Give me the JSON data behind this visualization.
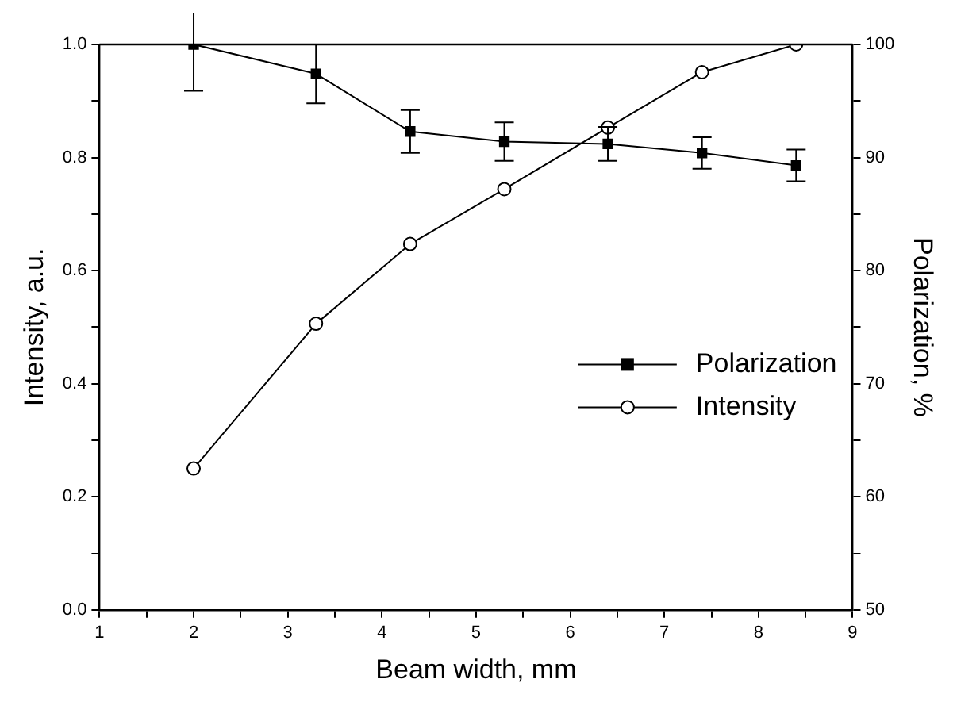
{
  "chart_data": {
    "type": "line",
    "xlabel": "Beam width, mm",
    "ylabel": "Intensity, a.u.",
    "y2label": "Polarization, %",
    "x": [
      2,
      3.3,
      4.3,
      5.3,
      6.4,
      7.4,
      8.4
    ],
    "series": [
      {
        "name": "Polarization",
        "color": "#000000",
        "axis": "y2",
        "marker": "square",
        "values": [
          100,
          97.4,
          92.3,
          91.4,
          91.2,
          90.4,
          89.3
        ],
        "errors": [
          4.1,
          2.6,
          1.9,
          1.7,
          1.5,
          1.4,
          1.4
        ]
      },
      {
        "name": "Intensity",
        "color": "#000000",
        "axis": "y",
        "marker": "circle",
        "values": [
          0.25,
          0.506,
          0.647,
          0.744,
          0.853,
          0.951,
          1.0
        ]
      }
    ],
    "xlim": [
      1,
      9
    ],
    "xticks": [
      1,
      {
        "value": 1.5,
        "label": null
      },
      2,
      {
        "value": 2.5,
        "label": null
      },
      3,
      {
        "value": 3.5,
        "label": null
      },
      4,
      {
        "value": 4.5,
        "label": null
      },
      5,
      {
        "value": 5.5,
        "label": null
      },
      6,
      {
        "value": 6.5,
        "label": null
      },
      7,
      {
        "value": 7.5,
        "label": null
      },
      8,
      {
        "value": 8.5,
        "label": null
      },
      9
    ],
    "ylim": [
      0,
      1
    ],
    "yticks": [
      {
        "value": 0,
        "label": "0.0"
      },
      {
        "value": 0.1,
        "label": null
      },
      {
        "value": 0.2,
        "label": "0.2"
      },
      {
        "value": 0.3,
        "label": null
      },
      {
        "value": 0.4,
        "label": "0.4"
      },
      {
        "value": 0.5,
        "label": null
      },
      {
        "value": 0.6,
        "label": "0.6"
      },
      {
        "value": 0.7,
        "label": null
      },
      {
        "value": 0.8,
        "label": "0.8"
      },
      {
        "value": 0.9,
        "label": null
      },
      {
        "value": 1,
        "label": "1.0"
      }
    ],
    "y2lim": [
      50,
      100
    ],
    "y2ticks": [
      50,
      {
        "value": 55,
        "label": null
      },
      60,
      {
        "value": 65,
        "label": null
      },
      70,
      {
        "value": 75,
        "label": null
      },
      80,
      {
        "value": 85,
        "label": null
      },
      90,
      {
        "value": 95,
        "label": null
      },
      100
    ],
    "grid": false,
    "legend": "right",
    "line_style": "solid"
  }
}
